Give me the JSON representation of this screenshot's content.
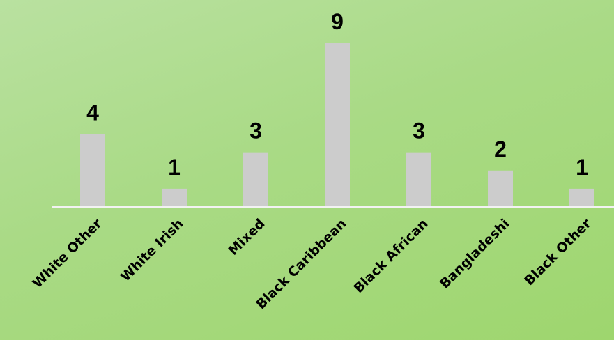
{
  "chart_data": {
    "type": "bar",
    "categories": [
      "White Other",
      "White Irish",
      "Mixed",
      "Black Caribbean",
      "Black African",
      "Bangladeshi",
      "Black Other"
    ],
    "values": [
      4,
      1,
      3,
      9,
      3,
      2,
      1
    ],
    "title": "",
    "xlabel": "",
    "ylabel": "",
    "ylim": [
      0,
      9
    ],
    "grid": false,
    "legend": "none",
    "data_labels": true,
    "colors": {
      "bar": "#cccccc",
      "axis": "#f2f2f2",
      "text": "#000000",
      "background_top": "#b9e1a0",
      "background_bottom": "#9ed66e"
    }
  }
}
